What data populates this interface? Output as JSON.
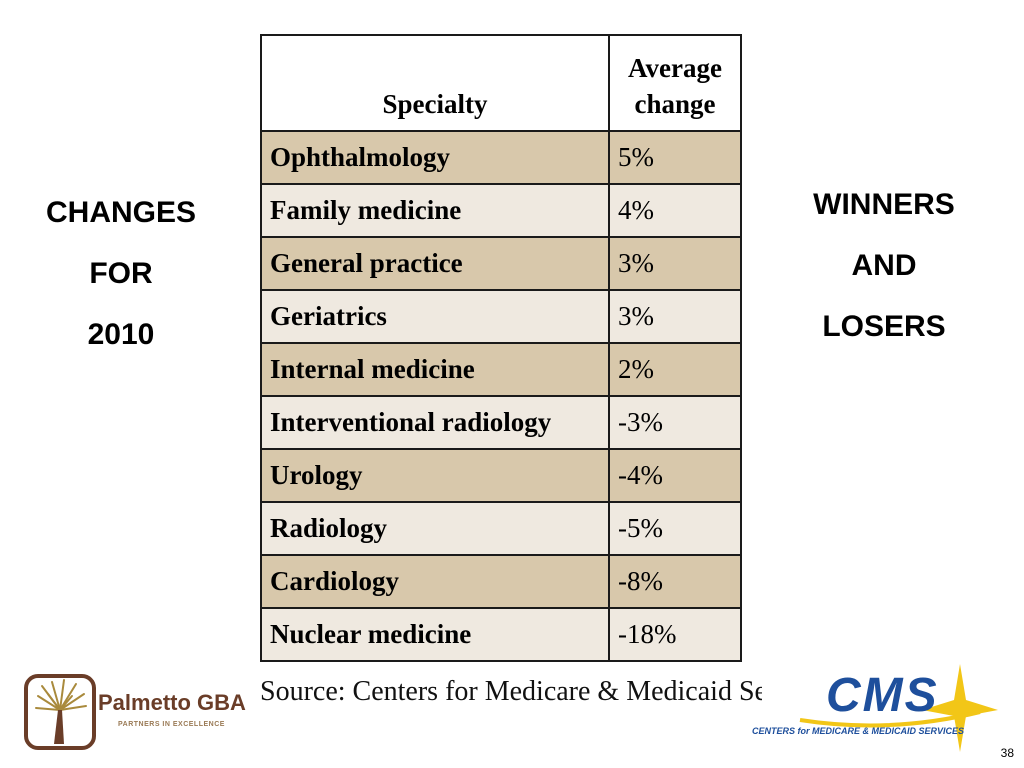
{
  "left_title": [
    "CHANGES",
    "FOR",
    "2010"
  ],
  "right_title": [
    "WINNERS",
    "AND",
    "LOSERS"
  ],
  "table": {
    "headers": [
      "Specialty",
      "Average change"
    ],
    "rows": [
      {
        "specialty": "Ophthalmology",
        "change": "5%"
      },
      {
        "specialty": "Family medicine",
        "change": "4%"
      },
      {
        "specialty": "General practice",
        "change": "3%"
      },
      {
        "specialty": "Geriatrics",
        "change": "3%"
      },
      {
        "specialty": "Internal medicine",
        "change": "2%"
      },
      {
        "specialty": "Interventional radiology",
        "change": "-3%"
      },
      {
        "specialty": "Urology",
        "change": "-4%"
      },
      {
        "specialty": "Radiology",
        "change": "-5%"
      },
      {
        "specialty": "Cardiology",
        "change": "-8%"
      },
      {
        "specialty": "Nuclear medicine",
        "change": "-18%"
      }
    ]
  },
  "source": "Source: Centers for Medicare & Medicaid Services",
  "logos": {
    "palmetto_name": "Palmetto GBA",
    "palmetto_tagline": "PARTNERS IN EXCELLENCE",
    "cms_name": "CMS",
    "cms_tagline": "CENTERS for MEDICARE & MEDICAID SERVICES"
  },
  "page_number": "38",
  "colors": {
    "row_odd": "#d8c8ab",
    "row_even": "#efe9e0",
    "cms_blue": "#1e4f9c",
    "cms_yellow": "#f2c617",
    "palmetto_brown": "#6a3d28"
  }
}
